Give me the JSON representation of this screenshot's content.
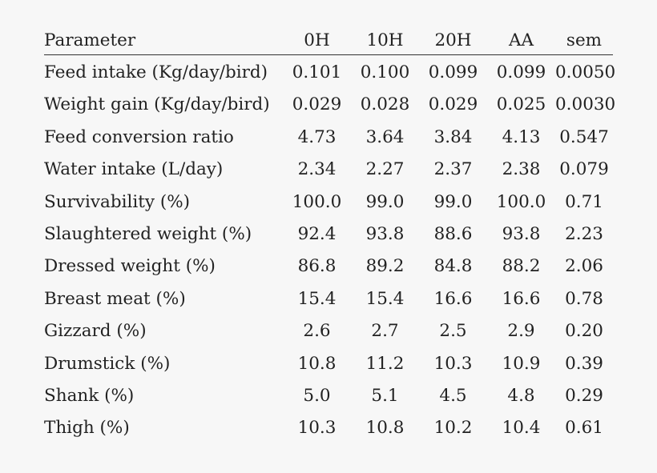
{
  "table": {
    "headers": [
      "Parameter",
      "0H",
      "10H",
      "20H",
      "AA",
      "sem"
    ],
    "rows": [
      [
        "Feed intake (Kg/day/bird)",
        "0.101",
        "0.100",
        "0.099",
        "0.099",
        "0.0050"
      ],
      [
        "Weight gain (Kg/day/bird)",
        "0.029",
        "0.028",
        "0.029",
        "0.025",
        "0.0030"
      ],
      [
        "Feed conversion ratio",
        "4.73",
        "3.64",
        "3.84",
        "4.13",
        "0.547"
      ],
      [
        "Water intake (L/day)",
        "2.34",
        "2.27",
        "2.37",
        "2.38",
        "0.079"
      ],
      [
        "Survivability (%)",
        "100.0",
        "99.0",
        "99.0",
        "100.0",
        "0.71"
      ],
      [
        "Slaughtered weight (%)",
        "92.4",
        "93.8",
        "88.6",
        "93.8",
        "2.23"
      ],
      [
        "Dressed weight (%)",
        "86.8",
        "89.2",
        "84.8",
        "88.2",
        "2.06"
      ],
      [
        "Breast meat (%)",
        "15.4",
        "15.4",
        "16.6",
        "16.6",
        "0.78"
      ],
      [
        "Gizzard (%)",
        "2.6",
        "2.7",
        "2.5",
        "2.9",
        "0.20"
      ],
      [
        "Drumstick (%)",
        "10.8",
        "11.2",
        "10.3",
        "10.9",
        "0.39"
      ],
      [
        "Shank (%)",
        "5.0",
        "5.1",
        "4.5",
        "4.8",
        "0.29"
      ],
      [
        "Thigh (%)",
        "10.3",
        "10.8",
        "10.2",
        "10.4",
        "0.61"
      ]
    ]
  },
  "colors": {
    "background": "#f7f7f7",
    "text": "#222222",
    "rule": "#333333"
  }
}
